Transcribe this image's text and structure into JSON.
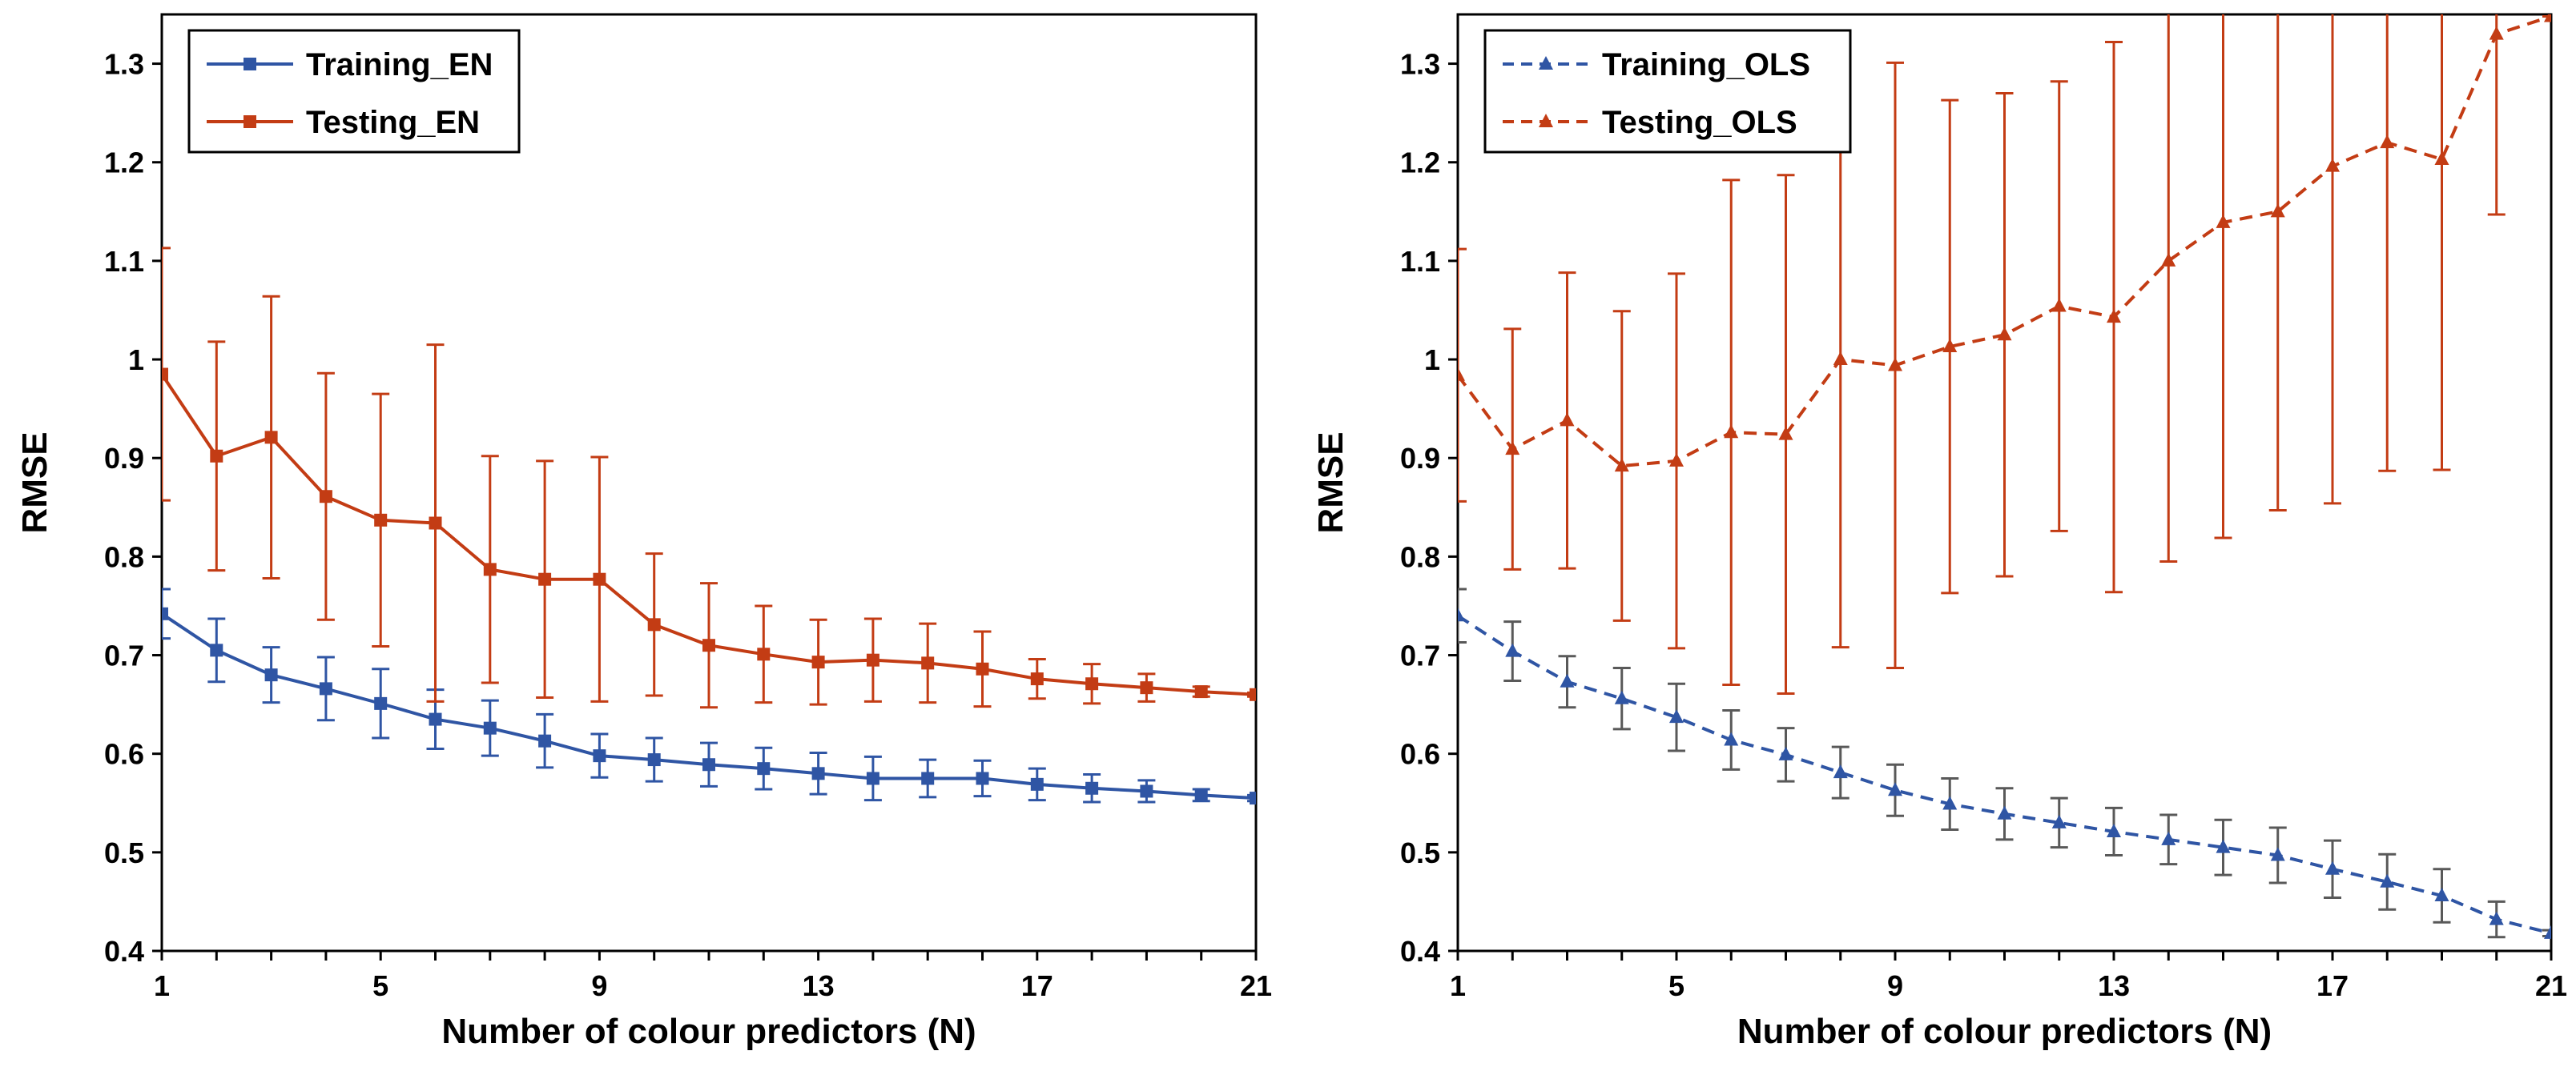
{
  "chart_data": [
    {
      "type": "line",
      "xlabel": "Number of colour predictors (N)",
      "ylabel": "RMSE",
      "xlim": [
        1,
        21
      ],
      "ylim": [
        0.4,
        1.35
      ],
      "x_ticks": [
        "1",
        "5",
        "9",
        "13",
        "17",
        "21"
      ],
      "y_ticks": [
        "0.4",
        "0.5",
        "0.6",
        "0.7",
        "0.8",
        "0.9",
        "1",
        "1.1",
        "1.2",
        "1.3"
      ],
      "legend_position": "top-left",
      "x": [
        1,
        2,
        3,
        4,
        5,
        6,
        7,
        8,
        9,
        10,
        11,
        12,
        13,
        14,
        15,
        16,
        17,
        18,
        19,
        20,
        21
      ],
      "series": [
        {
          "name": "Training_EN",
          "color": "#2F55A4",
          "marker": "square",
          "dash": "solid",
          "values": [
            0.742,
            0.705,
            0.68,
            0.666,
            0.651,
            0.635,
            0.626,
            0.613,
            0.598,
            0.594,
            0.589,
            0.585,
            0.58,
            0.575,
            0.575,
            0.575,
            0.569,
            0.565,
            0.562,
            0.558,
            0.555
          ],
          "errors": [
            0.025,
            0.032,
            0.028,
            0.032,
            0.035,
            0.03,
            0.028,
            0.027,
            0.022,
            0.022,
            0.022,
            0.021,
            0.021,
            0.022,
            0.019,
            0.018,
            0.016,
            0.014,
            0.011,
            0.006,
            0.003
          ]
        },
        {
          "name": "Testing_EN",
          "color": "#C33C14",
          "marker": "square",
          "dash": "solid",
          "values": [
            0.985,
            0.902,
            0.921,
            0.861,
            0.837,
            0.834,
            0.787,
            0.777,
            0.777,
            0.731,
            0.71,
            0.701,
            0.693,
            0.695,
            0.692,
            0.686,
            0.676,
            0.671,
            0.667,
            0.663,
            0.66
          ],
          "errors": [
            0.128,
            0.116,
            0.143,
            0.125,
            0.128,
            0.181,
            0.115,
            0.12,
            0.124,
            0.072,
            0.063,
            0.049,
            0.043,
            0.042,
            0.04,
            0.038,
            0.02,
            0.02,
            0.014,
            0.005,
            0.002
          ]
        }
      ]
    },
    {
      "type": "line",
      "xlabel": "Number of colour predictors (N)",
      "ylabel": "RMSE",
      "xlim": [
        1,
        21
      ],
      "ylim": [
        0.4,
        1.35
      ],
      "x_ticks": [
        "1",
        "5",
        "9",
        "13",
        "17",
        "21"
      ],
      "y_ticks": [
        "0.4",
        "0.5",
        "0.6",
        "0.7",
        "0.8",
        "0.9",
        "1",
        "1.1",
        "1.2",
        "1.3"
      ],
      "legend_position": "top-left",
      "x": [
        1,
        2,
        3,
        4,
        5,
        6,
        7,
        8,
        9,
        10,
        11,
        12,
        13,
        14,
        15,
        16,
        17,
        18,
        19,
        20,
        21
      ],
      "series": [
        {
          "name": "Training_OLS",
          "color": "#2F55A4",
          "marker": "triangle",
          "dash": "dashed",
          "values": [
            0.74,
            0.704,
            0.673,
            0.656,
            0.637,
            0.614,
            0.599,
            0.581,
            0.563,
            0.549,
            0.539,
            0.53,
            0.521,
            0.513,
            0.505,
            0.497,
            0.483,
            0.47,
            0.456,
            0.432,
            0.418
          ],
          "errors": [
            0.027,
            0.03,
            0.026,
            0.031,
            0.034,
            0.03,
            0.027,
            0.026,
            0.026,
            0.026,
            0.026,
            0.025,
            0.024,
            0.025,
            0.028,
            0.028,
            0.029,
            0.028,
            0.027,
            0.018,
            0.003
          ]
        },
        {
          "name": "Testing_OLS",
          "color": "#C33C14",
          "marker": "triangle",
          "dash": "dashed",
          "values": [
            0.984,
            0.909,
            0.938,
            0.892,
            0.897,
            0.926,
            0.924,
            1.0,
            0.994,
            1.013,
            1.025,
            1.054,
            1.043,
            1.1,
            1.139,
            1.15,
            1.196,
            1.22,
            1.203,
            1.33,
            1.348
          ],
          "errors": [
            0.128,
            0.122,
            0.15,
            0.157,
            0.19,
            0.256,
            0.263,
            0.292,
            0.307,
            0.25,
            0.245,
            0.228,
            0.279,
            0.305,
            0.32,
            0.303,
            0.342,
            0.333,
            0.315,
            0.183,
            0.0
          ]
        }
      ]
    }
  ]
}
